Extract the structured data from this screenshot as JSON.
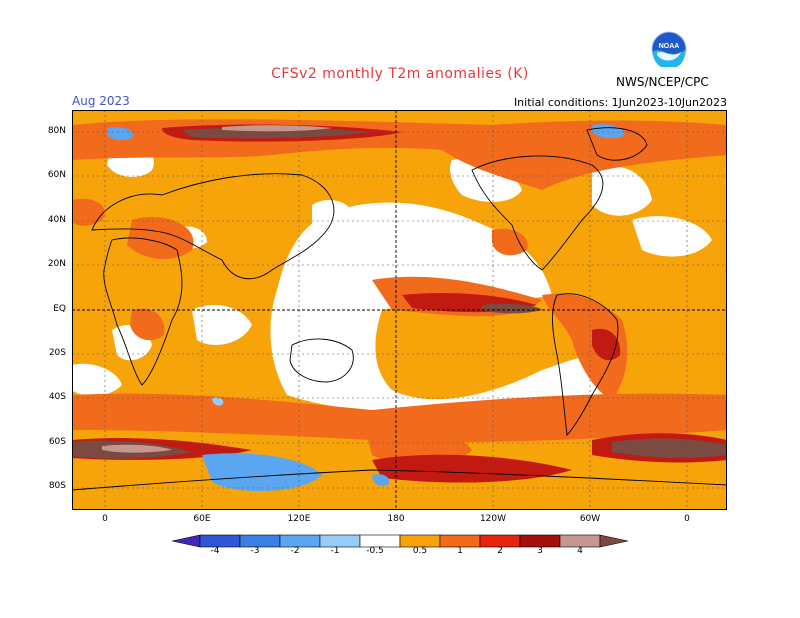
{
  "header": {
    "title": "CFSv2 monthly T2m anomalies (K)",
    "month": "Aug 2023",
    "initial_conditions": "Initial conditions: 1Jun2023-10Jun2023",
    "agency": "NWS/NCEP/CPC",
    "logo_text": "NOAA"
  },
  "axes": {
    "lat_labels": [
      "80N",
      "60N",
      "40N",
      "20N",
      "EQ",
      "20S",
      "40S",
      "60S",
      "80S"
    ],
    "lon_labels": [
      "0",
      "60E",
      "120E",
      "180",
      "120W",
      "60W",
      "0"
    ]
  },
  "colorbar": {
    "labels": [
      "-4",
      "-3",
      "-2",
      "-1",
      "-0.5",
      "0.5",
      "1",
      "2",
      "3",
      "4"
    ],
    "colors": [
      "#4427b8",
      "#2f55d8",
      "#3a7fe6",
      "#5aa6f0",
      "#96cdf8",
      "#ffffff",
      "#f7a40a",
      "#f26a1b",
      "#e8240f",
      "#a3100c",
      "#c49890",
      "#7b4a40"
    ]
  }
}
